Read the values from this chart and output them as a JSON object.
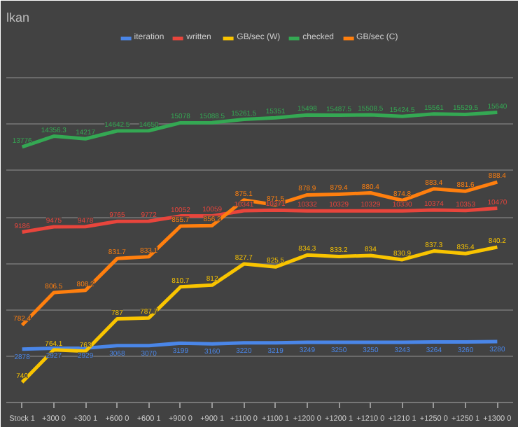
{
  "chart_data": {
    "type": "line",
    "title": "lkan",
    "categories": [
      "Stock 1",
      "+300 0",
      "+300 1",
      "+600 0",
      "+600 1",
      "+900 0",
      "+900 1",
      "+1100 0",
      "+1100 1",
      "+1200 0",
      "+1200 1",
      "+1210 0",
      "+1210 1",
      "+1250 0",
      "+1250 1",
      "+1300 0"
    ],
    "series": [
      {
        "name": "iteration",
        "color": "#4a86e8",
        "values": [
          2878,
          2927,
          2929,
          3068,
          3070,
          3199,
          3160,
          3220,
          3219,
          3249,
          3250,
          3250,
          3243,
          3264,
          3260,
          3280
        ]
      },
      {
        "name": "written",
        "color": "#e8453c",
        "values": [
          9186,
          9475,
          9478,
          9765,
          9772,
          10052,
          10059,
          10341,
          10371,
          10332,
          10329,
          10329,
          10330,
          10374,
          10353,
          10470
        ]
      },
      {
        "name": "GB/sec (W)",
        "color": "#f9c400",
        "axis": "y2",
        "values": [
          740,
          764.1,
          763,
          787,
          787.7,
          810.7,
          812,
          827.7,
          825.5,
          834.3,
          833.2,
          834,
          830.9,
          837.3,
          835.4,
          840.2
        ]
      },
      {
        "name": "checked",
        "color": "#34a853",
        "values": [
          13776,
          14356.3,
          14217,
          14642.5,
          14650,
          15078,
          15088.5,
          15261.5,
          15351,
          15498,
          15487.5,
          15508.5,
          15424.5,
          15561,
          15529.5,
          15640
        ]
      },
      {
        "name": "GB/sec (C)",
        "color": "#ff7f0e",
        "axis": "y2",
        "values": [
          782.4,
          806.5,
          808.2,
          831.7,
          833.1,
          855.7,
          856.2,
          875.1,
          871.5,
          878.9,
          879.4,
          880.4,
          874.8,
          883.4,
          881.6,
          888.4
        ]
      }
    ],
    "ylim": [
      0,
      20000
    ],
    "yticks": [
      {
        "value": 0,
        "label": null
      },
      {
        "value": 2500,
        "label": null
      },
      {
        "value": 5000,
        "label": null
      },
      {
        "value": 7500,
        "label": null
      },
      {
        "value": 10000,
        "label": null
      },
      {
        "value": 12500,
        "label": null
      },
      {
        "value": 15000,
        "label": null
      },
      {
        "value": 17500,
        "label": null
      },
      {
        "value": 20000,
        "label": null
      }
    ],
    "y2lim": [
      725,
      1000
    ],
    "tick_labels": "x",
    "grid": "y",
    "legend": "top",
    "data_labels": true,
    "marker": "none",
    "line_style": "solid"
  }
}
